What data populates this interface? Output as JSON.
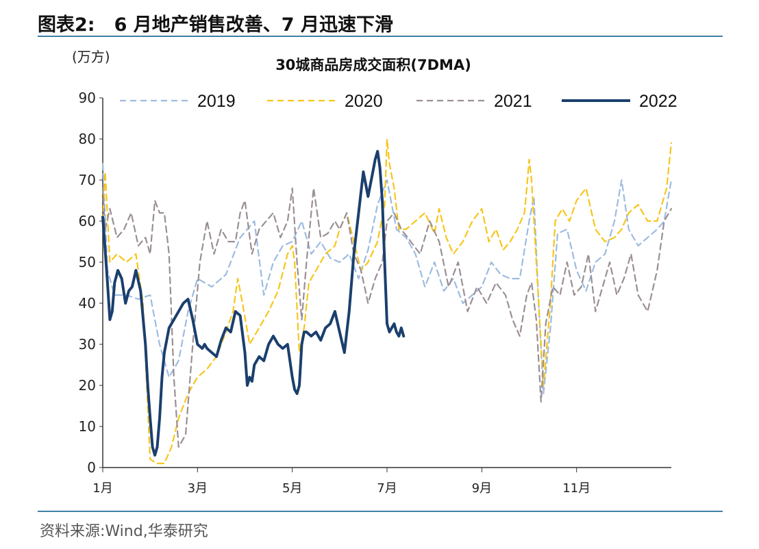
{
  "figure": {
    "label": "图表2:",
    "title": "6 月地产销售改善、7 月迅速下滑",
    "source": "资料来源:Wind,华泰研究"
  },
  "colors": {
    "2019": "#9dbbe0",
    "2020": "#f7c51b",
    "2021": "#9a8e95",
    "2022": "#1b3f6e",
    "rule": "#3f7ea6"
  },
  "chart_data": {
    "type": "line",
    "title": "30城商品房成交面积(7DMA)",
    "unit": "(万方)",
    "ylim": [
      0,
      90
    ],
    "yticks": [
      0,
      10,
      20,
      30,
      40,
      50,
      60,
      70,
      80,
      90
    ],
    "xlim": [
      1,
      13
    ],
    "xticks": [
      {
        "value": 1,
        "label": "1月"
      },
      {
        "value": 3,
        "label": "3月"
      },
      {
        "value": 5,
        "label": "5月"
      },
      {
        "value": 7,
        "label": "7月"
      },
      {
        "value": 9,
        "label": "9月"
      },
      {
        "value": 11,
        "label": "11月"
      }
    ],
    "grid": false,
    "legend": "top",
    "series": [
      {
        "name": "2019",
        "style": "dashed",
        "x": [
          1.0,
          1.1,
          1.25,
          1.5,
          1.75,
          2.0,
          2.2,
          2.4,
          2.6,
          2.8,
          3.0,
          3.3,
          3.6,
          3.9,
          4.2,
          4.4,
          4.6,
          4.8,
          5.0,
          5.2,
          5.4,
          5.6,
          5.8,
          6.0,
          6.2,
          6.4,
          6.6,
          6.8,
          7.0,
          7.2,
          7.4,
          7.6,
          7.8,
          8.0,
          8.2,
          8.4,
          8.6,
          8.8,
          9.0,
          9.2,
          9.4,
          9.6,
          9.8,
          10.0,
          10.1,
          10.2,
          10.3,
          10.45,
          10.6,
          10.8,
          11.0,
          11.2,
          11.4,
          11.6,
          11.8,
          11.95,
          12.1,
          12.3,
          12.5,
          12.7,
          12.85,
          13.0
        ],
        "y": [
          74,
          48,
          42,
          42,
          41,
          42,
          30,
          22,
          26,
          38,
          46,
          44,
          47,
          56,
          60,
          42,
          50,
          54,
          55,
          60,
          52,
          55,
          51,
          50,
          52,
          46,
          53,
          64,
          70,
          58,
          56,
          52,
          44,
          50,
          43,
          46,
          40,
          42,
          44,
          50,
          47,
          46,
          46,
          60,
          66,
          40,
          18,
          34,
          57,
          58,
          48,
          43,
          50,
          52,
          60,
          70,
          58,
          54,
          56,
          58,
          60,
          70
        ]
      },
      {
        "name": "2020",
        "style": "dashed",
        "x": [
          1.0,
          1.05,
          1.15,
          1.3,
          1.5,
          1.7,
          1.85,
          2.0,
          2.15,
          2.3,
          2.45,
          2.6,
          2.8,
          3.0,
          3.2,
          3.4,
          3.6,
          3.75,
          3.85,
          3.95,
          4.1,
          4.2,
          4.35,
          4.5,
          4.7,
          4.9,
          5.0,
          5.05,
          5.15,
          5.25,
          5.35,
          5.5,
          5.7,
          5.9,
          6.0,
          6.15,
          6.3,
          6.45,
          6.6,
          6.8,
          6.95,
          7.0,
          7.05,
          7.15,
          7.25,
          7.4,
          7.6,
          7.8,
          8.0,
          8.1,
          8.25,
          8.4,
          8.6,
          8.8,
          9.0,
          9.15,
          9.3,
          9.45,
          9.6,
          9.75,
          9.9,
          9.95,
          10.0,
          10.05,
          10.15,
          10.3,
          10.45,
          10.55,
          10.7,
          10.85,
          11.0,
          11.2,
          11.4,
          11.6,
          11.8,
          11.95,
          12.1,
          12.3,
          12.5,
          12.7,
          12.9,
          13.0
        ],
        "y": [
          60,
          72,
          50,
          52,
          50,
          52,
          40,
          2,
          1,
          1,
          5,
          12,
          18,
          22,
          24,
          27,
          33,
          38,
          46,
          40,
          30,
          32,
          35,
          38,
          43,
          52,
          54,
          50,
          28,
          34,
          45,
          48,
          52,
          54,
          58,
          62,
          55,
          48,
          50,
          55,
          64,
          80,
          74,
          68,
          58,
          58,
          60,
          62,
          57,
          63,
          56,
          52,
          55,
          60,
          63,
          55,
          58,
          53,
          55,
          58,
          62,
          68,
          75,
          70,
          50,
          20,
          40,
          60,
          63,
          60,
          65,
          68,
          58,
          55,
          56,
          58,
          62,
          64,
          60,
          60,
          68,
          79
        ]
      },
      {
        "name": "2021",
        "style": "dashed",
        "x": [
          1.0,
          1.05,
          1.15,
          1.3,
          1.45,
          1.6,
          1.75,
          1.9,
          2.0,
          2.1,
          2.2,
          2.3,
          2.4,
          2.5,
          2.6,
          2.75,
          2.9,
          3.05,
          3.2,
          3.35,
          3.5,
          3.65,
          3.8,
          3.9,
          4.0,
          4.15,
          4.3,
          4.45,
          4.6,
          4.75,
          4.9,
          5.0,
          5.1,
          5.2,
          5.3,
          5.45,
          5.6,
          5.75,
          5.9,
          6.0,
          6.15,
          6.3,
          6.45,
          6.6,
          6.75,
          6.9,
          7.0,
          7.15,
          7.3,
          7.5,
          7.7,
          7.9,
          8.1,
          8.3,
          8.5,
          8.7,
          8.9,
          9.1,
          9.3,
          9.5,
          9.65,
          9.8,
          9.95,
          10.05,
          10.15,
          10.25,
          10.35,
          10.5,
          10.65,
          10.8,
          10.95,
          11.1,
          11.25,
          11.4,
          11.55,
          11.7,
          11.85,
          12.0,
          12.15,
          12.3,
          12.5,
          12.7,
          12.85,
          13.0
        ],
        "y": [
          68,
          58,
          63,
          56,
          58,
          62,
          54,
          56,
          52,
          65,
          62,
          62,
          52,
          22,
          5,
          8,
          30,
          50,
          60,
          52,
          58,
          55,
          55,
          62,
          65,
          52,
          58,
          60,
          62,
          56,
          60,
          68,
          50,
          36,
          50,
          68,
          56,
          57,
          60,
          58,
          62,
          52,
          48,
          40,
          46,
          50,
          60,
          62,
          58,
          55,
          52,
          60,
          55,
          44,
          50,
          38,
          44,
          40,
          45,
          42,
          36,
          32,
          42,
          45,
          36,
          16,
          35,
          44,
          42,
          50,
          42,
          44,
          52,
          38,
          44,
          50,
          42,
          46,
          52,
          42,
          38,
          48,
          60,
          63
        ]
      },
      {
        "name": "2022",
        "style": "solid",
        "x": [
          1.0,
          1.05,
          1.1,
          1.15,
          1.2,
          1.25,
          1.32,
          1.4,
          1.48,
          1.55,
          1.62,
          1.7,
          1.8,
          1.9,
          1.95,
          2.0,
          2.05,
          2.1,
          2.15,
          2.2,
          2.25,
          2.3,
          2.4,
          2.5,
          2.6,
          2.7,
          2.8,
          2.9,
          3.0,
          3.1,
          3.15,
          3.2,
          3.3,
          3.4,
          3.5,
          3.6,
          3.7,
          3.8,
          3.9,
          4.0,
          4.05,
          4.1,
          4.15,
          4.2,
          4.3,
          4.4,
          4.5,
          4.6,
          4.7,
          4.8,
          4.9,
          5.0,
          5.05,
          5.1,
          5.15,
          5.2,
          5.25,
          5.3,
          5.4,
          5.5,
          5.6,
          5.7,
          5.8,
          5.9,
          6.0,
          6.1,
          6.2,
          6.3,
          6.4,
          6.5,
          6.6,
          6.7,
          6.75,
          6.8,
          6.85,
          6.9,
          6.95,
          7.0,
          7.05,
          7.1,
          7.15,
          7.2,
          7.25,
          7.3,
          7.35
        ],
        "y": [
          61,
          53,
          45,
          36,
          38,
          45,
          48,
          46,
          40,
          43,
          44,
          48,
          43,
          30,
          20,
          12,
          5,
          3,
          5,
          12,
          22,
          28,
          34,
          36,
          38,
          40,
          41,
          36,
          30,
          29,
          30,
          29,
          28,
          27,
          31,
          34,
          33,
          38,
          37,
          28,
          20,
          22,
          21,
          25,
          27,
          26,
          30,
          32,
          30,
          29,
          30,
          22,
          19,
          18,
          20,
          30,
          33,
          33,
          32,
          33,
          31,
          34,
          35,
          38,
          33,
          28,
          38,
          52,
          62,
          72,
          66,
          72,
          75,
          77,
          73,
          65,
          50,
          35,
          33,
          34,
          35,
          33,
          32,
          34,
          32
        ]
      }
    ]
  }
}
